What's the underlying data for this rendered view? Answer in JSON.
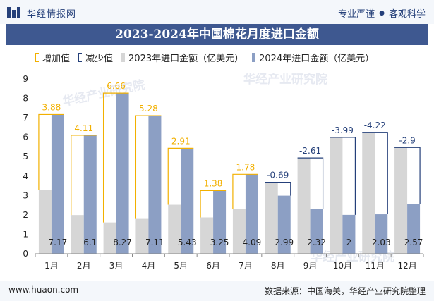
{
  "header": {
    "brand": "华经情报网",
    "tag1": "专业严谨",
    "tag2": "客观科学"
  },
  "title": "2023-2024年中国棉花月度进口金额",
  "legend": {
    "increase": "增加值",
    "decrease": "减少值",
    "y2023": "2023年进口金额（亿美元）",
    "y2024": "2024年进口金额（亿美元）"
  },
  "watermark": "华经产业研究院",
  "footer": {
    "site": "www.huaon.com",
    "source": "数据来源：中国海关，华经产业研究院整理"
  },
  "colors": {
    "bar2023": "#d6d6d6",
    "bar2024": "#8c9fc4",
    "increase": "#f2b000",
    "decrease": "#25407a",
    "title_bg": "#3e5890"
  },
  "chart_data": {
    "type": "bar",
    "title": "2023-2024年中国棉花月度进口金额",
    "categories": [
      "1月",
      "2月",
      "3月",
      "4月",
      "5月",
      "6月",
      "7月",
      "8月",
      "9月",
      "10月",
      "11月",
      "12月"
    ],
    "series": [
      {
        "name": "2023年进口金额（亿美元）",
        "values": [
          3.29,
          1.99,
          1.61,
          1.83,
          2.52,
          1.87,
          2.31,
          3.68,
          4.93,
          5.99,
          6.25,
          5.47
        ]
      },
      {
        "name": "2024年进口金额（亿美元）",
        "values": [
          7.17,
          6.1,
          8.27,
          7.11,
          5.43,
          3.25,
          4.09,
          2.99,
          2.32,
          2.0,
          2.03,
          2.57
        ]
      }
    ],
    "change": {
      "values": [
        3.88,
        4.11,
        6.66,
        5.28,
        2.91,
        1.38,
        1.78,
        -0.69,
        -2.61,
        -3.99,
        -4.22,
        -2.9
      ],
      "labels": [
        "3.88",
        "4.11",
        "6.66",
        "5.28",
        "2.91",
        "1.38",
        "1.78",
        "-0.69",
        "-2.61",
        "-3.99",
        "-4.22",
        "-2.9"
      ]
    },
    "bar2024_labels": [
      "7.17",
      "6.1",
      "8.27",
      "7.11",
      "5.43",
      "3.25",
      "4.09",
      "2.99",
      "2.32",
      "2",
      "2.03",
      "2.57"
    ],
    "yticks": [
      0,
      1,
      2,
      3,
      4,
      5,
      6,
      7,
      8,
      9
    ],
    "ylim": [
      0,
      9
    ],
    "legend_position": "top-left",
    "grid": false
  }
}
